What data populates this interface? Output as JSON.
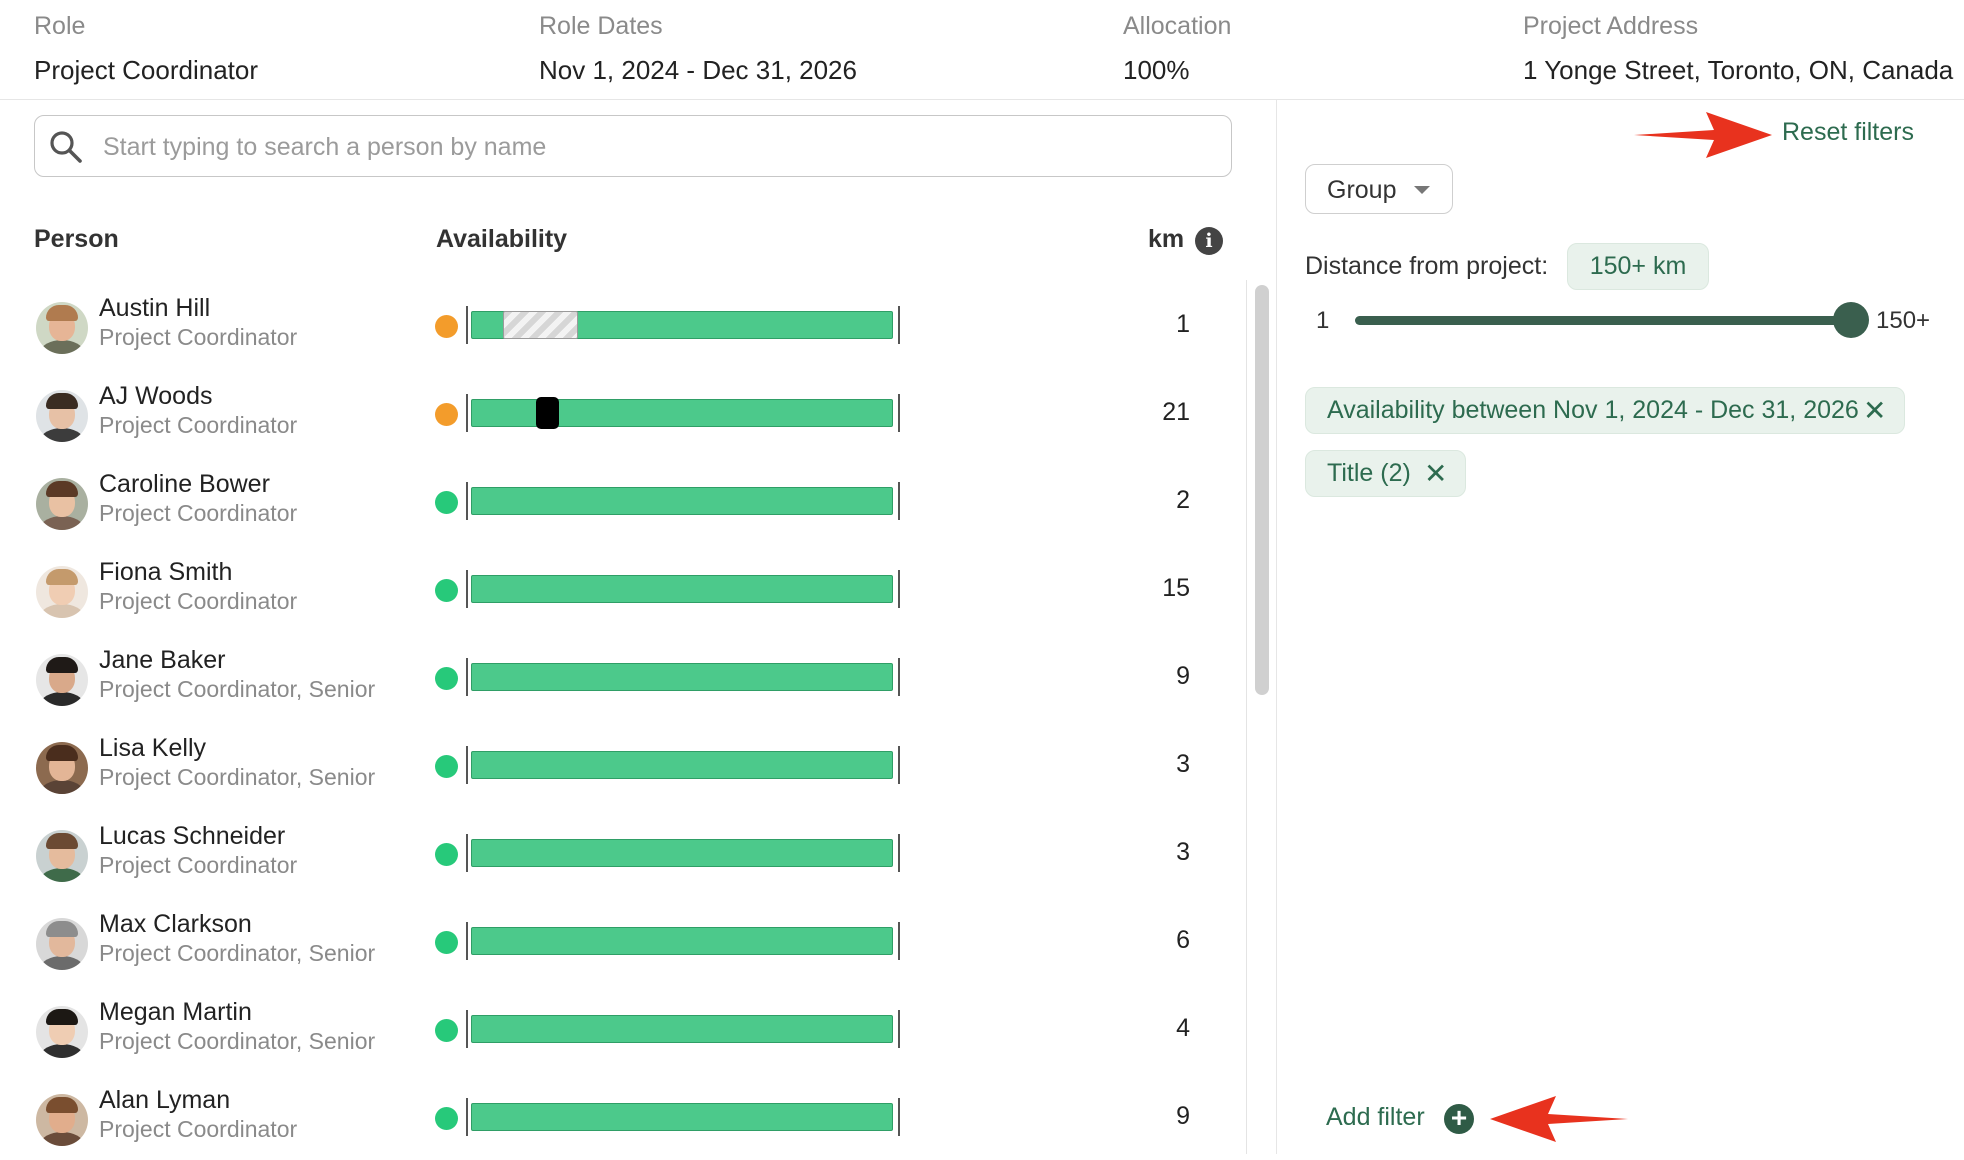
{
  "header": {
    "role_label": "Role",
    "role_value": "Project Coordinator",
    "dates_label": "Role Dates",
    "dates_value": "Nov 1, 2024 - Dec 31, 2026",
    "alloc_label": "Allocation",
    "alloc_value": "100%",
    "address_label": "Project Address",
    "address_value": "1 Yonge Street, Toronto, ON, Canada"
  },
  "search": {
    "placeholder": "Start typing to search a person by name"
  },
  "columns": {
    "person": "Person",
    "availability": "Availability",
    "km": "km"
  },
  "people": [
    {
      "name": "Austin Hill",
      "title": "Project Coordinator",
      "km": "1",
      "status": "partial"
    },
    {
      "name": "AJ Woods",
      "title": "Project Coordinator",
      "km": "21",
      "status": "partial"
    },
    {
      "name": "Caroline Bower",
      "title": "Project Coordinator",
      "km": "2",
      "status": "available"
    },
    {
      "name": "Fiona Smith",
      "title": "Project Coordinator",
      "km": "15",
      "status": "available"
    },
    {
      "name": "Jane Baker",
      "title": "Project Coordinator, Senior",
      "km": "9",
      "status": "available"
    },
    {
      "name": "Lisa Kelly",
      "title": "Project Coordinator, Senior",
      "km": "3",
      "status": "available"
    },
    {
      "name": "Lucas Schneider",
      "title": "Project Coordinator",
      "km": "3",
      "status": "available"
    },
    {
      "name": "Max Clarkson",
      "title": "Project Coordinator, Senior",
      "km": "6",
      "status": "available"
    },
    {
      "name": "Megan Martin",
      "title": "Project Coordinator, Senior",
      "km": "4",
      "status": "available"
    },
    {
      "name": "Alan Lyman",
      "title": "Project Coordinator",
      "km": "9",
      "status": "available"
    }
  ],
  "filters": {
    "reset_label": "Reset filters",
    "group_label": "Group",
    "distance_label": "Distance from project:",
    "distance_value": "150+ km",
    "slider_min": "1",
    "slider_max": "150+",
    "slider_level": 1.0,
    "chips": [
      "Availability between Nov 1, 2024 - Dec 31, 2026",
      "Title (2)"
    ],
    "add_filter_label": "Add filter"
  },
  "colors": {
    "available": "#2ecc71",
    "partial": "#f5a623",
    "bar": "#4cc98b",
    "accent": "#2d6b4f",
    "annotation_arrow": "#e8321e"
  },
  "icons": {
    "search": "search-icon",
    "info": "info-icon",
    "close": "close-icon",
    "add": "plus-circle-icon",
    "caret": "chevron-down-icon"
  }
}
